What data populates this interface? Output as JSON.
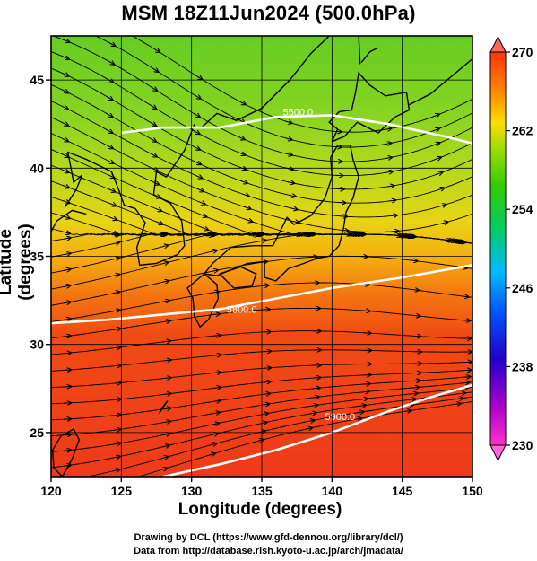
{
  "title": "MSM 18Z11Jun2024 (500.0hPa)",
  "x_axis": {
    "label": "Longitude (degrees)",
    "min": 120,
    "max": 150,
    "ticks": [
      120,
      125,
      130,
      135,
      140,
      145,
      150
    ]
  },
  "y_axis": {
    "label": "Latitude  (degrees)",
    "min": 22.5,
    "max": 47.5,
    "ticks": [
      25,
      30,
      35,
      40,
      45
    ]
  },
  "colorbar": {
    "min": 230,
    "max": 270,
    "ticks": [
      230,
      238,
      246,
      254,
      262,
      270
    ],
    "colors": [
      "#ff00cc",
      "#8800cc",
      "#0000cc",
      "#0066ff",
      "#00ccff",
      "#00cc66",
      "#33cc00",
      "#99dd00",
      "#ffcc00",
      "#ff6600",
      "#ff2200"
    ]
  },
  "contours": [
    {
      "label": "5800.0",
      "points": [
        [
          120,
          31.2
        ],
        [
          124,
          31.4
        ],
        [
          128,
          31.7
        ],
        [
          132,
          32.0
        ],
        [
          136,
          32.6
        ],
        [
          140,
          33.2
        ],
        [
          145,
          33.8
        ],
        [
          150,
          34.5
        ]
      ],
      "label_at": [
        132.5,
        31.8
      ]
    },
    {
      "label": "5500.0",
      "points": [
        [
          125,
          42.0
        ],
        [
          128,
          42.3
        ],
        [
          132,
          42.3
        ],
        [
          136,
          42.9
        ],
        [
          140,
          43.0
        ],
        [
          144,
          42.5
        ],
        [
          148,
          41.8
        ],
        [
          150,
          41.4
        ]
      ],
      "label_at": [
        136.5,
        43.0
      ]
    },
    {
      "label": "5900.0",
      "points": [
        [
          128,
          22.5
        ],
        [
          132,
          23.2
        ],
        [
          136,
          24.0
        ],
        [
          140,
          25.0
        ],
        [
          144,
          26.2
        ],
        [
          147,
          27.0
        ],
        [
          150,
          27.7
        ]
      ],
      "label_at": [
        139.5,
        25.7
      ]
    }
  ],
  "footer": {
    "line1": "Drawing by DCL (https://www.gfd-dennou.org/library/dcl/)",
    "line2": "Data from http://database.rish.kyoto-u.ac.jp/arch/jmadata/"
  }
}
